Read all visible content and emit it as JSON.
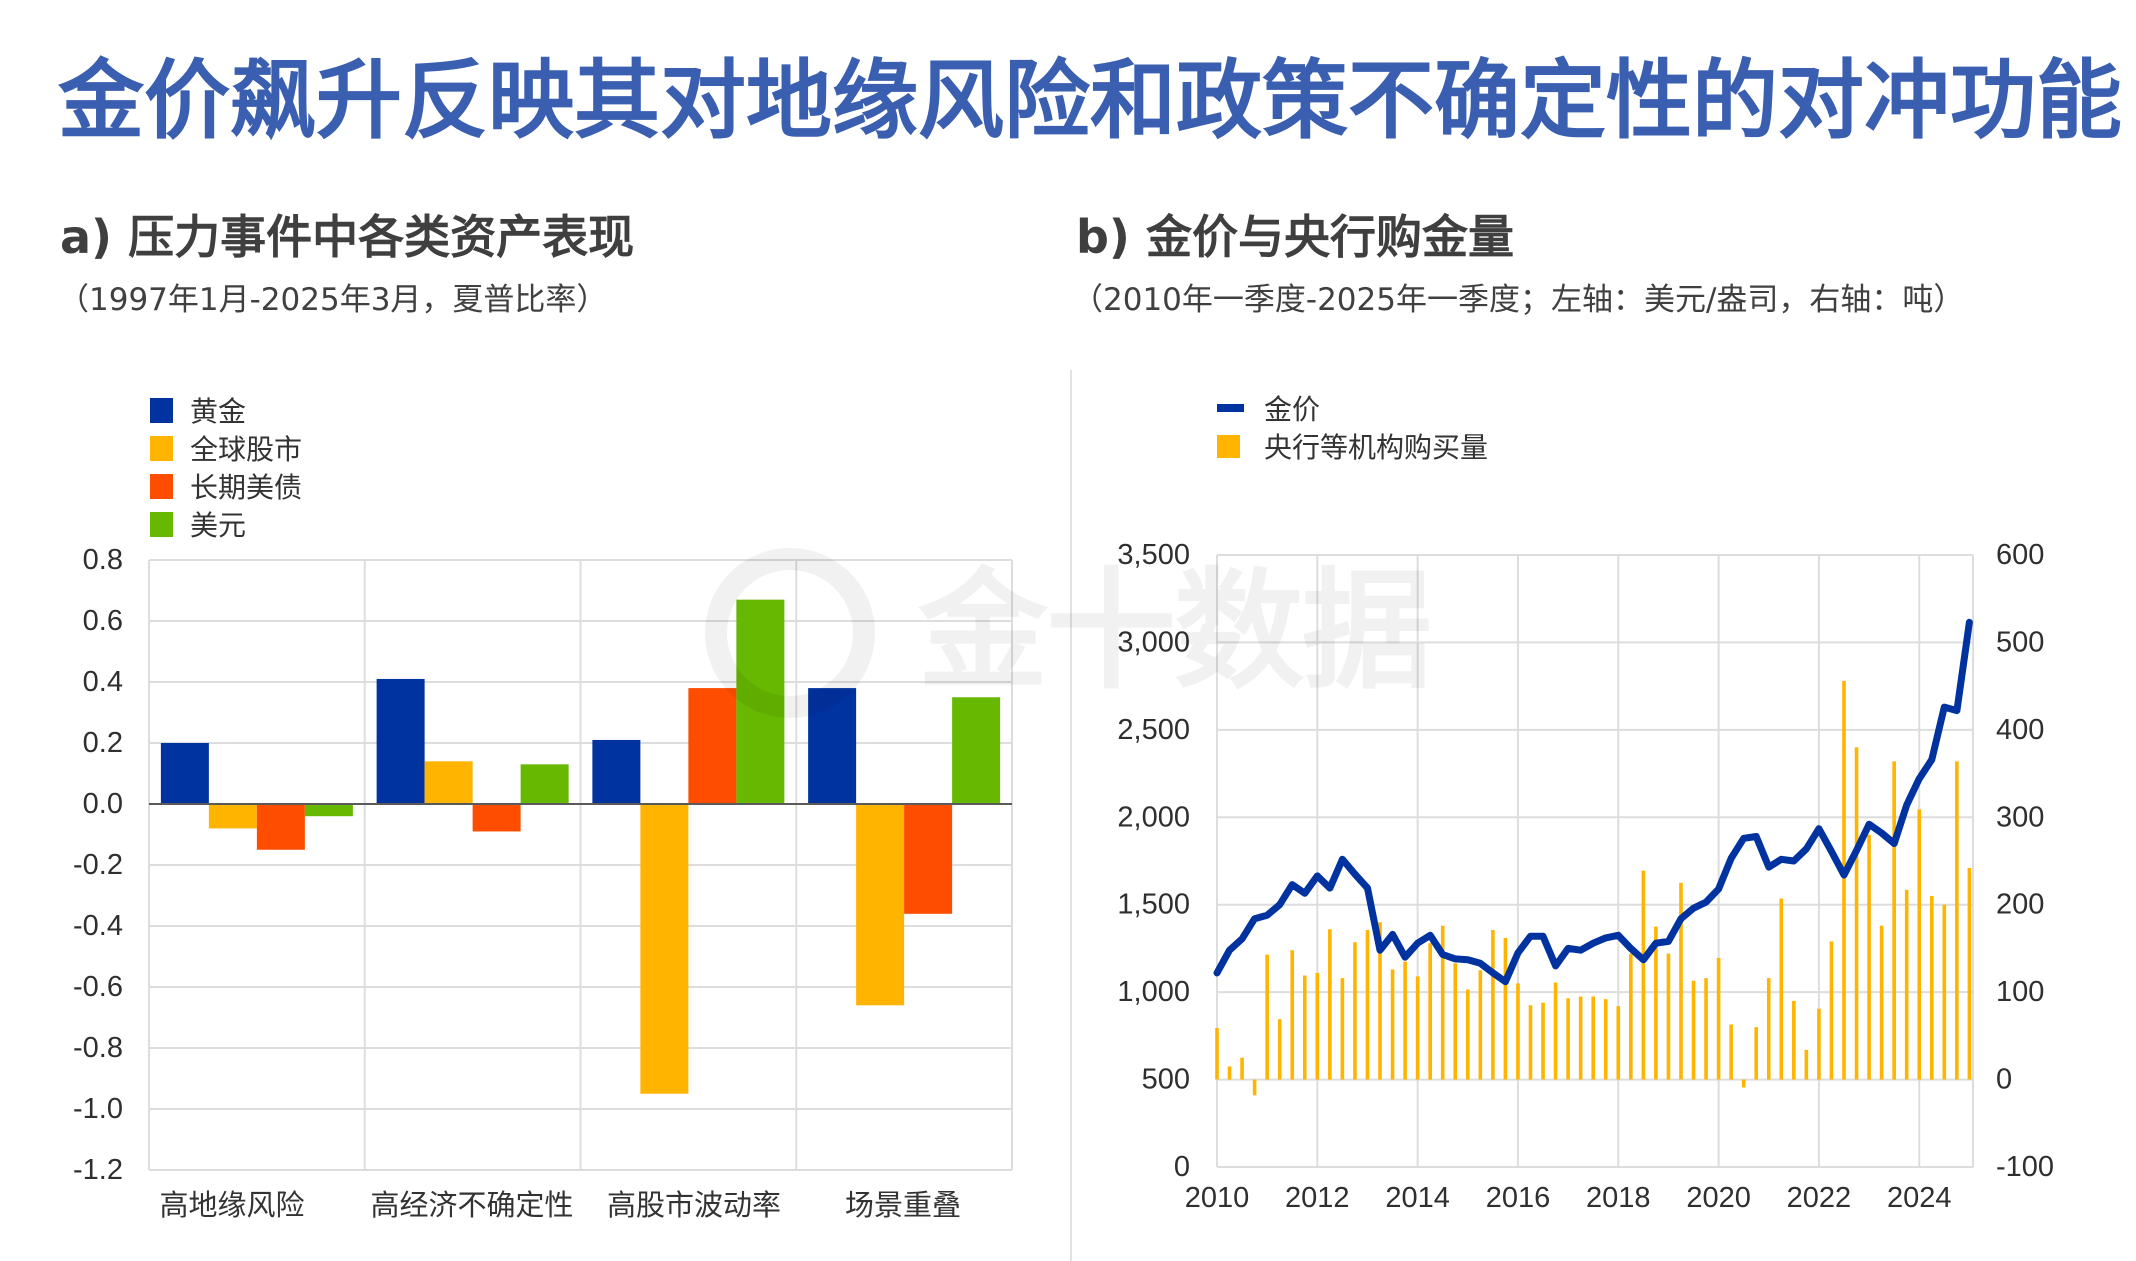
{
  "page": {
    "title": "金价飙升反映其对地缘风险和政策不确定性的对冲功能",
    "watermark_text": "金十数据",
    "title_color": "#3a5eb0"
  },
  "panels": [
    {
      "heading": "a) 压力事件中各类资产表现",
      "subheading": "（1997年1月-2025年3月，夏普比率）"
    },
    {
      "heading": "b) 金价与央行购金量",
      "subheading": "（2010年一季度-2025年一季度；左轴：美元/盎司，右轴：吨）"
    }
  ],
  "chart_data": [
    {
      "type": "bar",
      "title": "a) 压力事件中各类资产表现",
      "subtitle": "（1997年1月-2025年3月，夏普比率）",
      "xlabel": "",
      "ylabel": "",
      "categories": [
        "高地缘风险",
        "高经济不确定性",
        "高股市波动率",
        "场景重叠"
      ],
      "series": [
        {
          "name": "黄金",
          "color": "#0033a0",
          "values": [
            0.2,
            0.41,
            0.21,
            0.38
          ]
        },
        {
          "name": "全球股市",
          "color": "#ffb400",
          "values": [
            -0.08,
            0.14,
            -0.95,
            -0.66
          ]
        },
        {
          "name": "长期美债",
          "color": "#ff4d00",
          "values": [
            -0.15,
            -0.09,
            0.38,
            -0.36
          ]
        },
        {
          "name": "美元",
          "color": "#66b800",
          "values": [
            -0.04,
            0.13,
            0.67,
            0.35
          ]
        }
      ],
      "ylim": [
        -1.2,
        0.8
      ],
      "yticks": [
        "0.8",
        "0.6",
        "0.4",
        "0.2",
        "0.0",
        "-0.2",
        "-0.4",
        "-0.6",
        "-0.8",
        "-1.0",
        "-1.2"
      ],
      "grid": true,
      "legend_position": "top-left"
    },
    {
      "type": "line",
      "title": "b) 金价与央行购金量",
      "subtitle": "（2010年一季度-2025年一季度；左轴：美元/盎司，右轴：吨）",
      "xlabel": "",
      "ylabel_left": "美元/盎司",
      "ylabel_right": "吨",
      "x": [
        "2010Q1",
        "2010Q2",
        "2010Q3",
        "2010Q4",
        "2011Q1",
        "2011Q2",
        "2011Q3",
        "2011Q4",
        "2012Q1",
        "2012Q2",
        "2012Q3",
        "2012Q4",
        "2013Q1",
        "2013Q2",
        "2013Q3",
        "2013Q4",
        "2014Q1",
        "2014Q2",
        "2014Q3",
        "2014Q4",
        "2015Q1",
        "2015Q2",
        "2015Q3",
        "2015Q4",
        "2016Q1",
        "2016Q2",
        "2016Q3",
        "2016Q4",
        "2017Q1",
        "2017Q2",
        "2017Q3",
        "2017Q4",
        "2018Q1",
        "2018Q2",
        "2018Q3",
        "2018Q4",
        "2019Q1",
        "2019Q2",
        "2019Q3",
        "2019Q4",
        "2020Q1",
        "2020Q2",
        "2020Q3",
        "2020Q4",
        "2021Q1",
        "2021Q2",
        "2021Q3",
        "2021Q4",
        "2022Q1",
        "2022Q2",
        "2022Q3",
        "2022Q4",
        "2023Q1",
        "2023Q2",
        "2023Q3",
        "2023Q4",
        "2024Q1",
        "2024Q2",
        "2024Q3",
        "2024Q4",
        "2025Q1"
      ],
      "series": [
        {
          "name": "金价",
          "type": "line",
          "axis": "left",
          "color": "#0033a0",
          "values": [
            1110,
            1240,
            1305,
            1420,
            1440,
            1500,
            1615,
            1565,
            1665,
            1595,
            1760,
            1675,
            1595,
            1240,
            1330,
            1200,
            1280,
            1325,
            1215,
            1190,
            1185,
            1165,
            1110,
            1060,
            1225,
            1320,
            1320,
            1150,
            1250,
            1240,
            1280,
            1310,
            1325,
            1250,
            1185,
            1280,
            1290,
            1420,
            1480,
            1515,
            1590,
            1765,
            1880,
            1890,
            1715,
            1760,
            1750,
            1820,
            1935,
            1805,
            1670,
            1810,
            1960,
            1910,
            1850,
            2070,
            2220,
            2330,
            2630,
            2610,
            3115
          ]
        },
        {
          "name": "央行等机构购买量",
          "type": "bar",
          "axis": "right",
          "color": "#ffb400",
          "values": [
            59,
            15,
            25,
            -18,
            143,
            69,
            148,
            119,
            122,
            172,
            116,
            157,
            171,
            180,
            126,
            135,
            118,
            156,
            176,
            133,
            103,
            125,
            171,
            162,
            110,
            85,
            88,
            111,
            93,
            95,
            95,
            92,
            84,
            144,
            239,
            175,
            144,
            225,
            113,
            116,
            139,
            63,
            -9,
            60,
            116,
            207,
            90,
            34,
            81,
            158,
            456,
            380,
            280,
            176,
            364,
            217,
            309,
            210,
            200,
            364,
            242
          ]
        }
      ],
      "xticks": [
        "2010",
        "2012",
        "2014",
        "2016",
        "2018",
        "2020",
        "2022",
        "2024"
      ],
      "ylim_left": [
        0,
        3500
      ],
      "yticks_left": [
        "3,500",
        "3,000",
        "2,500",
        "2,000",
        "1,500",
        "1,000",
        "500",
        "0"
      ],
      "ylim_right": [
        -100,
        600
      ],
      "yticks_right": [
        "600",
        "500",
        "400",
        "300",
        "200",
        "100",
        "0",
        "-100"
      ],
      "grid": true,
      "legend_position": "top-left"
    }
  ]
}
